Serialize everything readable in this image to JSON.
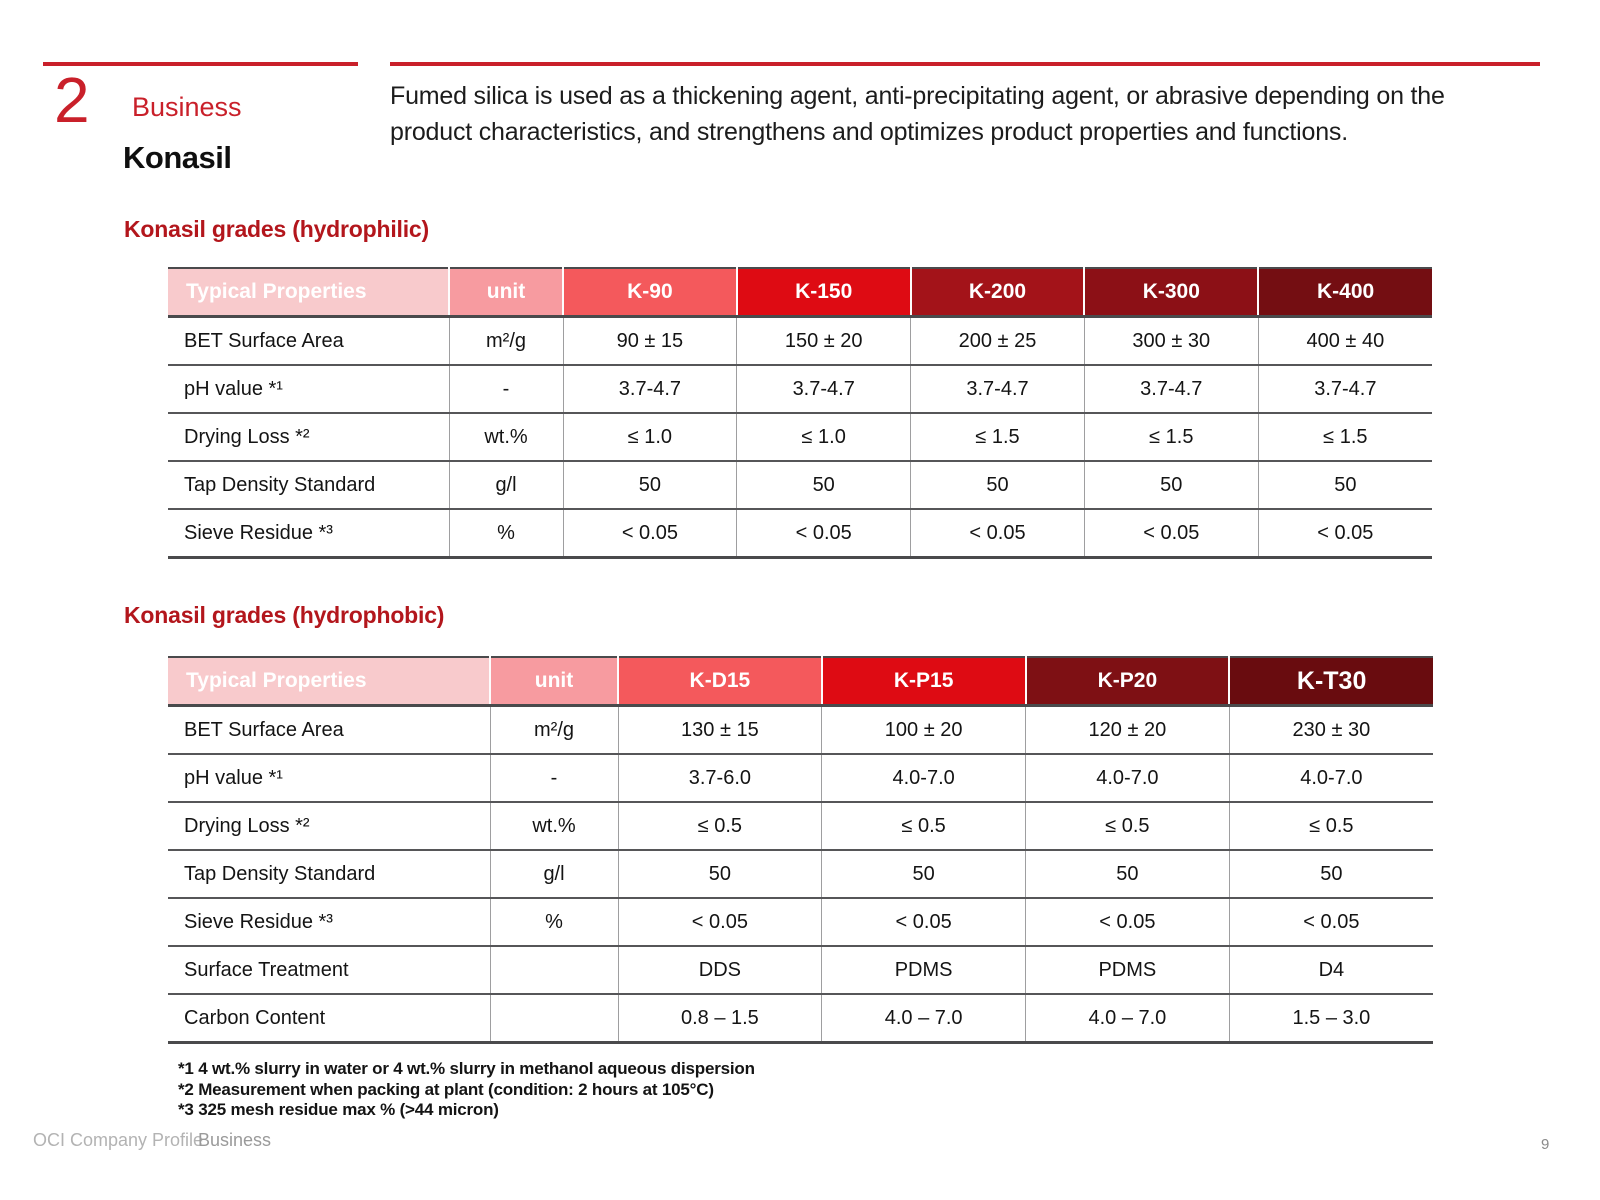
{
  "brand": {
    "accent_red": "#c9202a",
    "heading_red": "#b3161c"
  },
  "header": {
    "section_number": "2",
    "section_label": "Business",
    "page_title": "Konasil",
    "intro": "Fumed silica is used as a thickening agent, anti-precipitating agent, or abrasive depending on the product characteristics, and strengthens and optimizes product properties and functions."
  },
  "tables": [
    {
      "heading": "Konasil grades (hydrophilic)",
      "columns": [
        "Typical Properties",
        "unit",
        "K-90",
        "K-150",
        "K-200",
        "K-300",
        "K-400"
      ],
      "header_colors": [
        "#f8cacc",
        "#f79ba0",
        "#f4595c",
        "#de0b13",
        "#a31319",
        "#8c1016",
        "#740e12"
      ],
      "rows": [
        {
          "property": "BET Surface Area",
          "unit": "m²/g",
          "values": [
            "90 ± 15",
            "150 ± 20",
            "200 ± 25",
            "300 ± 30",
            "400 ± 40"
          ]
        },
        {
          "property": "pH value *¹",
          "unit": "-",
          "values": [
            "3.7-4.7",
            "3.7-4.7",
            "3.7-4.7",
            "3.7-4.7",
            "3.7-4.7"
          ]
        },
        {
          "property": "Drying Loss *²",
          "unit": "wt.%",
          "values": [
            "≤ 1.0",
            "≤ 1.0",
            "≤ 1.5",
            "≤ 1.5",
            "≤ 1.5"
          ]
        },
        {
          "property": "Tap Density  Standard",
          "unit": "g/l",
          "values": [
            "50",
            "50",
            "50",
            "50",
            "50"
          ]
        },
        {
          "property": "Sieve Residue *³",
          "unit": "%",
          "values": [
            "< 0.05",
            "< 0.05",
            "< 0.05",
            "< 0.05",
            "< 0.05"
          ]
        }
      ]
    },
    {
      "heading": "Konasil grades (hydrophobic)",
      "columns": [
        "Typical Properties",
        "unit",
        "K-D15",
        "K-P15",
        "K-P20",
        "K-T30"
      ],
      "header_colors": [
        "#f8cacc",
        "#f79ba0",
        "#f4595c",
        "#de0b13",
        "#7e1014",
        "#690c0f"
      ],
      "rows": [
        {
          "property": "BET Surface Area",
          "unit": "m²/g",
          "values": [
            "130 ± 15",
            "100 ± 20",
            "120 ± 20",
            "230 ± 30"
          ]
        },
        {
          "property": "pH value *¹",
          "unit": "-",
          "values": [
            "3.7-6.0",
            "4.0-7.0",
            "4.0-7.0",
            "4.0-7.0"
          ]
        },
        {
          "property": "Drying Loss *²",
          "unit": "wt.%",
          "values": [
            "≤ 0.5",
            "≤ 0.5",
            "≤ 0.5",
            "≤ 0.5"
          ]
        },
        {
          "property": "Tap Density  Standard",
          "unit": "g/l",
          "values": [
            "50",
            "50",
            "50",
            "50"
          ]
        },
        {
          "property": "Sieve Residue *³",
          "unit": "%",
          "values": [
            "< 0.05",
            "< 0.05",
            "< 0.05",
            "< 0.05"
          ]
        },
        {
          "property": "Surface Treatment",
          "unit": "",
          "values": [
            "DDS",
            "PDMS",
            "PDMS",
            "D4"
          ]
        },
        {
          "property": "Carbon Content",
          "unit": "",
          "values": [
            "0.8 – 1.5",
            "4.0 – 7.0",
            "4.0 – 7.0",
            "1.5 – 3.0"
          ]
        }
      ]
    }
  ],
  "footnotes": [
    "*1 4 wt.% slurry in water or 4 wt.% slurry in methanol aqueous dispersion",
    "*2 Measurement when packing at plant (condition: 2 hours at 105°C)",
    "*3 325 mesh residue max % (>44 micron)"
  ],
  "footer": {
    "doc_title": "OCI Company Profile",
    "section": "Business",
    "page_number": "9"
  }
}
